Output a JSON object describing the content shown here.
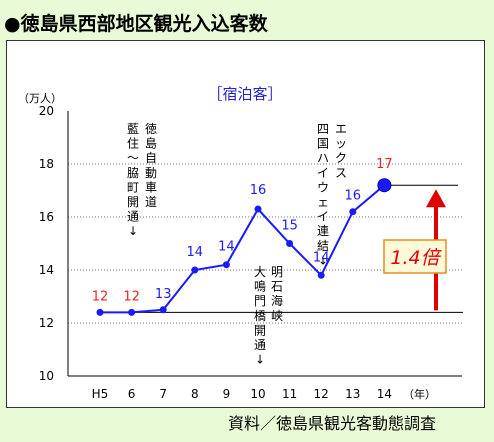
{
  "title": "●徳島県西部地区観光入込客数",
  "source": "資料／徳島県観光客動態調査",
  "chart_data": {
    "type": "line",
    "subtitle": "［宿泊客］",
    "ylabel": "（万人）",
    "xlabel": "（年）",
    "categories": [
      "H5",
      "6",
      "7",
      "8",
      "9",
      "10",
      "11",
      "12",
      "13",
      "14"
    ],
    "ylim": [
      10,
      20
    ],
    "yticks": [
      10,
      12,
      14,
      16,
      18,
      20
    ],
    "series": [
      {
        "values": [
          12.4,
          12.4,
          12.5,
          14.0,
          14.2,
          16.3,
          15.0,
          13.8,
          16.2,
          17.2
        ]
      }
    ],
    "data_labels": [
      "12",
      "12",
      "13",
      "14",
      "14",
      "16",
      "15",
      "14",
      "16",
      "17"
    ],
    "annotations": [
      {
        "text": "藍住～脇町開通↓",
        "x": "H5"
      },
      {
        "text": "徳島自動車道",
        "x": "6"
      },
      {
        "text": "四国ハイウェイ連結↓",
        "x": "12"
      },
      {
        "text": "エックス",
        "x": "12"
      },
      {
        "text": "大鳴門橋開通↓",
        "x": "10"
      },
      {
        "text": "明石海峡",
        "x": "10"
      },
      {
        "text": "1.4倍",
        "x": "14"
      }
    ],
    "grid": true,
    "colors": {
      "line": "#1a1aff",
      "label_low": "#e8281c",
      "label": "#2020ee",
      "arrow": "#e00000",
      "ratio_text": "#e00000",
      "ratio_bg": "#fff9d9"
    }
  }
}
